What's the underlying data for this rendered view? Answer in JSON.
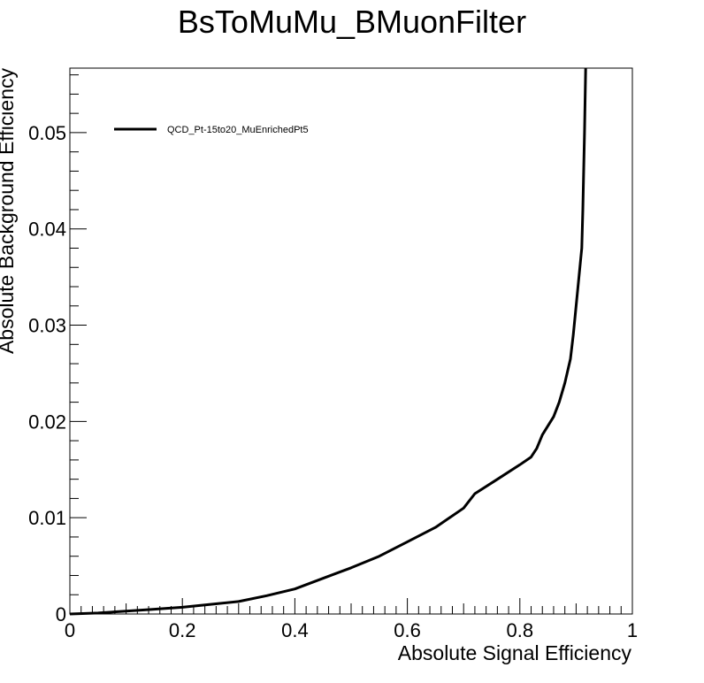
{
  "chart_data": {
    "type": "line",
    "title": "BsToMuMu_BMuonFilter",
    "xlabel": "Absolute Signal Efficiency",
    "ylabel": "Absolute Background Efficiency",
    "xlim": [
      0,
      1
    ],
    "ylim": [
      0,
      0.0567
    ],
    "x_ticks": [
      "0",
      "0.2",
      "0.4",
      "0.6",
      "0.8",
      "1"
    ],
    "y_ticks": [
      "0",
      "0.01",
      "0.02",
      "0.03",
      "0.04",
      "0.05"
    ],
    "grid": false,
    "legend_position": "top-left",
    "series": [
      {
        "name": "QCD_Pt-15to20_MuEnrichedPt5",
        "color": "#000000",
        "x": [
          0.0,
          0.05,
          0.1,
          0.15,
          0.2,
          0.25,
          0.3,
          0.35,
          0.4,
          0.45,
          0.5,
          0.55,
          0.6,
          0.65,
          0.7,
          0.72,
          0.76,
          0.8,
          0.82,
          0.83,
          0.84,
          0.86,
          0.87,
          0.88,
          0.89,
          0.895,
          0.9,
          0.905,
          0.91,
          0.912,
          0.915,
          0.917
        ],
        "y": [
          0.0,
          0.0001,
          0.0003,
          0.0005,
          0.0007,
          0.001,
          0.0013,
          0.0019,
          0.0026,
          0.0037,
          0.0048,
          0.006,
          0.0075,
          0.009,
          0.011,
          0.0125,
          0.014,
          0.0155,
          0.0163,
          0.0172,
          0.0186,
          0.0205,
          0.022,
          0.024,
          0.0265,
          0.029,
          0.032,
          0.035,
          0.038,
          0.042,
          0.05,
          0.0567
        ]
      }
    ]
  }
}
